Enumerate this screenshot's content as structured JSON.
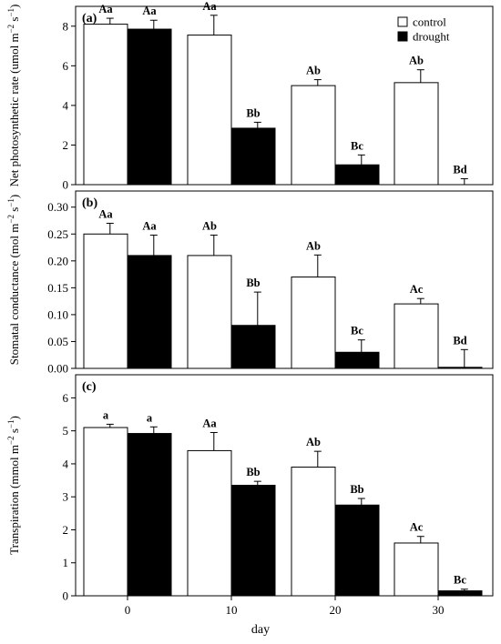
{
  "colors": {
    "control": "#ffffff",
    "drought": "#000000",
    "stroke": "#000000"
  },
  "legend": {
    "placement": "top-right",
    "entries": [
      "control",
      "drought"
    ]
  },
  "chart_data": [
    {
      "type": "bar",
      "panel": "(a)",
      "ylabel": [
        "Net photosynthetic rate  (umol m",
        "−2",
        " s",
        "−1",
        ")"
      ],
      "ylim": [
        0,
        9
      ],
      "yticks": [
        0,
        2,
        4,
        6,
        8
      ],
      "ytick_labels": [
        "0",
        "2",
        "4",
        "6",
        "8"
      ],
      "grid": false,
      "series": [
        {
          "name": "control",
          "values": [
            8.1,
            7.55,
            5.0,
            5.15
          ],
          "errors": [
            0.3,
            1.0,
            0.3,
            0.65
          ],
          "labels": [
            "Aa",
            "Aa",
            "Ab",
            "Ab"
          ]
        },
        {
          "name": "drought",
          "values": [
            7.85,
            2.85,
            1.0,
            0.0
          ],
          "errors": [
            0.45,
            0.3,
            0.5,
            0.3
          ],
          "labels": [
            "Aa",
            "Bb",
            "Bc",
            "Bd"
          ]
        }
      ]
    },
    {
      "type": "bar",
      "panel": "(b)",
      "ylabel": [
        "Stomatal conductance  (mol m",
        "−2",
        " s",
        "−1",
        ")"
      ],
      "ylim": [
        0,
        0.33
      ],
      "yticks": [
        0,
        0.05,
        0.1,
        0.15,
        0.2,
        0.25,
        0.3
      ],
      "ytick_labels": [
        "0.00",
        "0.05",
        "0.10",
        "0.15",
        "0.20",
        "0.25",
        "0.30"
      ],
      "grid": false,
      "series": [
        {
          "name": "control",
          "values": [
            0.25,
            0.21,
            0.17,
            0.12
          ],
          "errors": [
            0.02,
            0.038,
            0.041,
            0.01
          ],
          "labels": [
            "Aa",
            "Ab",
            "Ab",
            "Ac"
          ]
        },
        {
          "name": "drought",
          "values": [
            0.21,
            0.08,
            0.03,
            0.002
          ],
          "errors": [
            0.038,
            0.062,
            0.023,
            0.033
          ],
          "labels": [
            "Aa",
            "Bb",
            "Bc",
            "Bd"
          ]
        }
      ]
    },
    {
      "type": "bar",
      "panel": "(c)",
      "ylabel": [
        "Transpiration   (mmol m",
        "−2",
        " s",
        "−1",
        ")"
      ],
      "ylim": [
        0,
        6.7
      ],
      "yticks": [
        0,
        1,
        2,
        3,
        4,
        5,
        6
      ],
      "ytick_labels": [
        "0",
        "1",
        "2",
        "3",
        "4",
        "5",
        "6"
      ],
      "grid": false,
      "series": [
        {
          "name": "control",
          "values": [
            5.1,
            4.4,
            3.9,
            1.6
          ],
          "errors": [
            0.1,
            0.55,
            0.48,
            0.2
          ],
          "labels": [
            "a",
            "Aa",
            "Ab",
            "Ac"
          ]
        },
        {
          "name": "drought",
          "values": [
            4.92,
            3.35,
            2.75,
            0.15
          ],
          "errors": [
            0.2,
            0.12,
            0.2,
            0.05
          ],
          "labels": [
            "a",
            "Bb",
            "Bb",
            "Bc"
          ]
        }
      ]
    }
  ],
  "x": [
    0,
    10,
    20,
    30
  ],
  "xtick_labels": [
    "0",
    "10",
    "20",
    "30"
  ],
  "xlabel": "day"
}
